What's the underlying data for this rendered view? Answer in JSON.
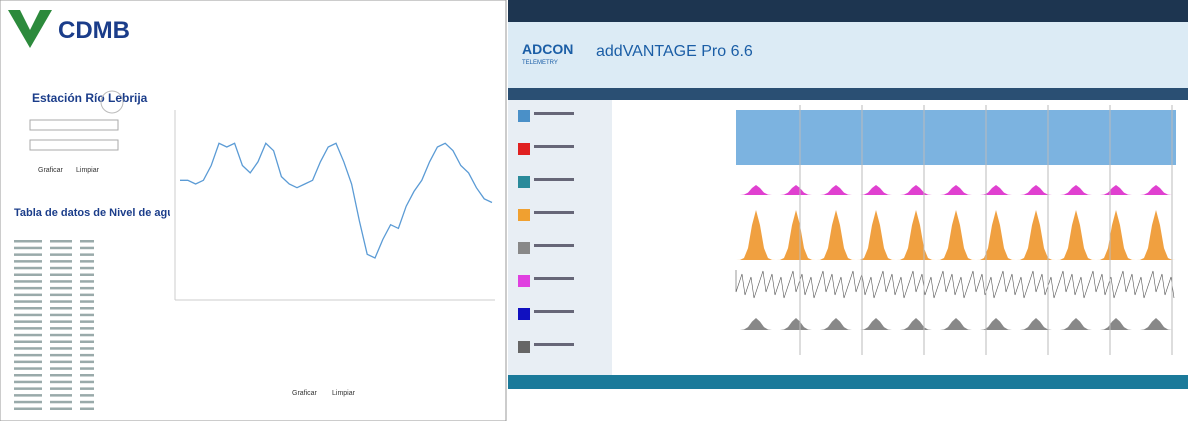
{
  "left": {
    "logo": "CDMB",
    "station_title": "Estación Río Lebrija",
    "table_title": "Tabla de datos de Nivel de agua (m)",
    "buttons": [
      "Graficar",
      "Limpiar"
    ],
    "bottom_buttons": [
      "Graficar",
      "Limpiar"
    ]
  },
  "level_chart": {
    "type": "line",
    "ylim": [
      0,
      100
    ],
    "values": [
      62,
      62,
      60,
      62,
      70,
      82,
      80,
      82,
      70,
      66,
      72,
      82,
      78,
      64,
      60,
      58,
      60,
      62,
      72,
      80,
      82,
      72,
      60,
      40,
      22,
      20,
      30,
      38,
      36,
      48,
      56,
      62,
      72,
      80,
      82,
      78,
      70,
      66,
      58,
      52,
      50
    ],
    "color": "#5b9bd5"
  },
  "right": {
    "brand": "ADCON",
    "brand_sub": "TELEMETRY",
    "product": "addVANTAGE Pro 6.6"
  }
}
